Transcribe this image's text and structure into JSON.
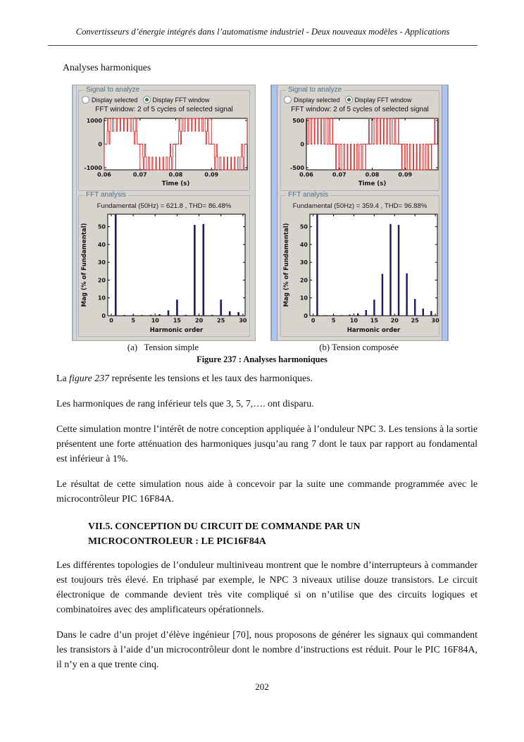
{
  "header": {
    "title": "Convertisseurs d’énergie intégrés dans l’automatisme industriel - Deux nouveaux modèles - Applications"
  },
  "intro_label": "Analyses harmoniques",
  "panels": [
    {
      "signal_group_title": "Signal to analyze",
      "radio_selected_label": "Display selected",
      "radio_fft_label": "Display FFT window",
      "fft_window_text": "FFT window: 2 of 5 cycles of selected signal",
      "fft_group_title": "FFT analysis",
      "fundamental_text": "Fundamental (50Hz) = 621.8 , THD= 86.48%",
      "caption": "(a)   Tension simple"
    },
    {
      "signal_group_title": "Signal to analyze",
      "radio_selected_label": "Display selected",
      "radio_fft_label": "Display FFT window",
      "fft_window_text": "FFT window: 2 of 5 cycles of selected signal",
      "fft_group_title": "FFT analysis",
      "fundamental_text": "Fundamental (50Hz) = 359.4 , THD= 96.88%",
      "caption": "(b) Tension composée"
    }
  ],
  "chart_data": [
    {
      "type": "line",
      "subtype": "multilevel-pwm",
      "panel": "a",
      "xlabel": "Time (s)",
      "ylabel": "",
      "xlim": [
        0.06,
        0.1
      ],
      "ylim": [
        -1090,
        1090
      ],
      "x_ticks": [
        "0.06",
        "0.07",
        "0.08",
        "0.09"
      ],
      "y_ticks": [
        -1000,
        0,
        1000
      ],
      "f0_hz": 50,
      "carrier_hz": 1000,
      "mod_index": 0.85,
      "phase_rad": 0,
      "vmax": 1090,
      "n_levels": 5,
      "levels": [
        -1090,
        -545,
        0,
        545,
        1090
      ],
      "color": "#d42a2a"
    },
    {
      "type": "bar",
      "panel": "a",
      "title": "Fundamental (50Hz) = 621.8 , THD= 86.48%",
      "xlabel": "Harmonic order",
      "ylabel": "Mag (% of Fundamental)",
      "xlim": [
        -0.8,
        30.5
      ],
      "ylim": [
        0,
        57
      ],
      "x_ticks": [
        0,
        5,
        10,
        15,
        20,
        25,
        30
      ],
      "y_ticks": [
        0,
        10,
        20,
        30,
        40,
        50
      ],
      "categories": [
        0,
        1,
        2,
        3,
        4,
        5,
        6,
        7,
        8,
        9,
        10,
        11,
        12,
        13,
        14,
        15,
        16,
        17,
        18,
        19,
        20,
        21,
        22,
        23,
        24,
        25,
        26,
        27,
        28,
        29,
        30
      ],
      "values": [
        0.2,
        100,
        0.2,
        0.4,
        0.2,
        0.4,
        0.2,
        0.4,
        0.2,
        0.5,
        0.2,
        0.8,
        0.2,
        3,
        0.2,
        9,
        0.2,
        0.5,
        0.2,
        51,
        0.3,
        51.5,
        0.2,
        0.5,
        0.2,
        9,
        0.2,
        2.5,
        0.2,
        2,
        0.2
      ],
      "color": "#1c1c5e"
    },
    {
      "type": "line",
      "subtype": "multilevel-pwm",
      "panel": "b",
      "xlabel": "Time (s)",
      "ylabel": "",
      "xlim": [
        0.06,
        0.1
      ],
      "ylim": [
        -545,
        545
      ],
      "x_ticks": [
        "0.06",
        "0.07",
        "0.08",
        "0.09"
      ],
      "y_ticks": [
        -500,
        0,
        500
      ],
      "f0_hz": 50,
      "carrier_hz": 1000,
      "mod_index": 0.8,
      "phase_rad": 0.5236,
      "vmax": 545,
      "n_levels": 3,
      "levels": [
        -545,
        0,
        545
      ],
      "color": "#d42a2a"
    },
    {
      "type": "bar",
      "panel": "b",
      "title": "Fundamental (50Hz) = 359.4 , THD= 96.88%",
      "xlabel": "Harmonic order",
      "ylabel": "Mag (% of Fundamental)",
      "xlim": [
        -0.8,
        30.5
      ],
      "ylim": [
        0,
        57
      ],
      "x_ticks": [
        0,
        5,
        10,
        15,
        20,
        25,
        30
      ],
      "y_ticks": [
        0,
        10,
        20,
        30,
        40,
        50
      ],
      "categories": [
        0,
        1,
        2,
        3,
        4,
        5,
        6,
        7,
        8,
        9,
        10,
        11,
        12,
        13,
        14,
        15,
        16,
        17,
        18,
        19,
        20,
        21,
        22,
        23,
        24,
        25,
        26,
        27,
        28,
        29,
        30
      ],
      "values": [
        0.2,
        100,
        0.2,
        0.3,
        0.2,
        0.3,
        0.2,
        0.3,
        0.2,
        0.6,
        0.2,
        1.3,
        0.2,
        3.2,
        0.2,
        9,
        0.2,
        23.5,
        0.2,
        51.5,
        0.3,
        51,
        0.2,
        23.8,
        0.2,
        9.4,
        0.2,
        4,
        0.2,
        2.6,
        0.2
      ],
      "color": "#1c1c5e"
    }
  ],
  "figure_caption": "Figure 237 : Analyses harmoniques",
  "body": {
    "p1_pre": "La ",
    "p1_italic": "figure 237",
    "p1_post": " représente les tensions et les taux des harmoniques.",
    "p2": "Les harmoniques de rang inférieur tels que 3, 5, 7,…. ont disparu.",
    "p3": "Cette simulation montre l’intérêt de notre conception appliquée à l’onduleur NPC 3. Les tensions à la sortie présentent une forte atténuation des harmoniques jusqu’au rang 7 dont le taux par rapport au fondamental est inférieur à 1%.",
    "p4": "Le résultat de cette simulation nous aide à concevoir par la suite une commande programmée avec le microcontrôleur PIC 16F84A.",
    "heading_line1": "VII.5. CONCEPTION DU CIRCUIT DE COMMANDE PAR UN",
    "heading_line2": "MICROCONTROLEUR : LE PIC16F84A",
    "p5": "Les différentes topologies de l’onduleur multiniveau montrent que le nombre d’interrupteurs à commander est toujours très élevé. En triphasé par exemple, le NPC 3 niveaux utilise douze transistors. Le circuit électronique de commande devient très vite compliqué si on n’utilise que des circuits logiques et combinatoires avec des amplificateurs opérationnels.",
    "p6": "Dans le cadre d’un projet d’élève ingénieur [70], nous proposons de générer les signaux qui commandent les transistors à l’aide d’un microcontrôleur dont le nombre d’instructions est réduit. Pour le PIC 16F84A, il n’y en a que trente cinq."
  },
  "page_number": "202",
  "colors": {
    "signal_trace": "#d42a2a",
    "fft_bars": "#1c1c5e",
    "panel_background": "#d7d3cd",
    "group_title": "#50718c",
    "scroll_strip": "#abc6ee"
  }
}
